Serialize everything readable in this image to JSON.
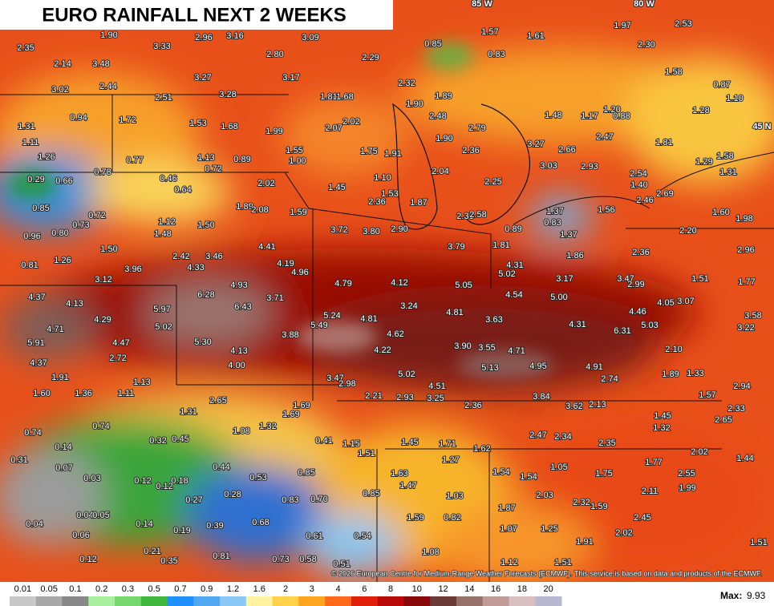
{
  "title": "EURO RAINFALL NEXT 2 WEEKS",
  "grid_labels": [
    "85 W",
    "80 W",
    "45 N"
  ],
  "point_values": [
    "2.35",
    "1.90",
    "3.33",
    "2.96",
    "3.16",
    "3.09",
    "2.80",
    "2.29",
    "0.85",
    "1.57",
    "1.61",
    "1.97",
    "2.53",
    "2.30",
    "2.14",
    "3.48",
    "0.83",
    "1.58",
    "0.87",
    "3.02",
    "2.44",
    "3.27",
    "3.17",
    "2.32",
    "3.28",
    "2.51",
    "1.81",
    "1.68",
    "1.90",
    "1.89",
    "1.20",
    "1.28",
    "1.10",
    "0.94",
    "1.72",
    "1.53",
    "1.68",
    "1.99",
    "2.07",
    "2.02",
    "2.48",
    "2.79",
    "1.48",
    "1.17",
    "0.88",
    "1.31",
    "1.11",
    "1.90",
    "3.27",
    "2.66",
    "2.47",
    "1.81",
    "2.36",
    "1.55",
    "1.00",
    "1.75",
    "1.91",
    "1.26",
    "0.77",
    "1.13",
    "0.89",
    "0.72",
    "3.03",
    "2.93",
    "2.54",
    "1.58",
    "1.29",
    "1.31",
    "0.29",
    "0.66",
    "0.78",
    "0.46",
    "0.64",
    "2.04",
    "1.10",
    "2.25",
    "2.02",
    "1.45",
    "1.53",
    "2.36",
    "1.87",
    "1.40",
    "2.69",
    "2.46",
    "0.85",
    "0.72",
    "0.73",
    "1.12",
    "1.50",
    "1.89",
    "2.08",
    "1.59",
    "3.72",
    "3.80",
    "2.90",
    "2.33",
    "2.58",
    "1.37",
    "0.83",
    "1.56",
    "1.60",
    "1.98",
    "0.96",
    "0.80",
    "1.48",
    "0.89",
    "1.37",
    "2.20",
    "1.50",
    "4.41",
    "3.79",
    "1.81",
    "2.42",
    "3.46",
    "1.26",
    "0.81",
    "4.19",
    "4.33",
    "3.96",
    "4.96",
    "4.31",
    "5.02",
    "1.86",
    "2.36",
    "2.96",
    "3.12",
    "4.93",
    "4.79",
    "4.12",
    "5.05",
    "3.17",
    "3.47",
    "2.99",
    "1.51",
    "1.77",
    "6.28",
    "3.71",
    "4.54",
    "5.00",
    "4.37",
    "4.13",
    "6.43",
    "5.97",
    "3.24",
    "4.81",
    "4.05",
    "3.07",
    "4.46",
    "3.58",
    "4.29",
    "5.24",
    "4.81",
    "5.49",
    "5.02",
    "3.63",
    "4.31",
    "5.03",
    "6.31",
    "3.22",
    "4.71",
    "3.88",
    "4.62",
    "5.91",
    "4.47",
    "5.30",
    "3.90",
    "3.55",
    "4.71",
    "2.10",
    "4.13",
    "4.22",
    "2.72",
    "4.37",
    "4.00",
    "5.13",
    "4.95",
    "4.91",
    "1.89",
    "1.33",
    "5.02",
    "1.91",
    "1.13",
    "3.47",
    "2.98",
    "4.51",
    "2.74",
    "2.94",
    "1.60",
    "1.36",
    "1.11",
    "2.21",
    "2.93",
    "3.25",
    "3.84",
    "1.57",
    "2.65",
    "1.69",
    "2.36",
    "3.62",
    "2.13",
    "2.33",
    "1.31",
    "1.69",
    "1.45",
    "2.65",
    "1.08",
    "1.32",
    "1.32",
    "0.74",
    "0.74",
    "2.47",
    "2.34",
    "0.32",
    "0.45",
    "0.41",
    "1.15",
    "1.45",
    "1.71",
    "1.62",
    "2.35",
    "2.02",
    "0.14",
    "1.51",
    "0.31",
    "1.27",
    "1.77",
    "1.44",
    "0.07",
    "0.44",
    "1.05",
    "1.54",
    "1.54",
    "1.75",
    "2.55",
    "0.03",
    "0.85",
    "1.63",
    "0.53",
    "0.12",
    "0.18",
    "0.12",
    "1.47",
    "1.99",
    "2.11",
    "0.28",
    "0.85",
    "1.03",
    "2.03",
    "0.27",
    "0.83",
    "0.70",
    "2.32",
    "1.59",
    "1.87",
    "0.04",
    "0.05",
    "1.59",
    "0.82",
    "2.45",
    "0.04",
    "0.14",
    "0.68",
    "0.39",
    "0.19",
    "1.07",
    "1.25",
    "2.02",
    "0.06",
    "0.61",
    "0.54",
    "1.91",
    "0.21",
    "1.08",
    "0.12",
    "0.35",
    "0.81",
    "0.73",
    "0.58",
    "0.51",
    "1.12",
    "1.51",
    "1.51"
  ],
  "credit": "© 2026 European Centre for Medium-Range Weather Forecasts (ECMWF). This service is based on data and products of the ECMWF.",
  "colorbar": {
    "ticks": [
      "0.01",
      "0.05",
      "0.1",
      "0.2",
      "0.3",
      "0.5",
      "0.7",
      "0.9",
      "1.2",
      "1.6",
      "2",
      "3",
      "4",
      "6",
      "8",
      "10",
      "12",
      "14",
      "16",
      "18",
      "20"
    ]
  },
  "max": {
    "label": "Max:",
    "value": "9.93"
  }
}
